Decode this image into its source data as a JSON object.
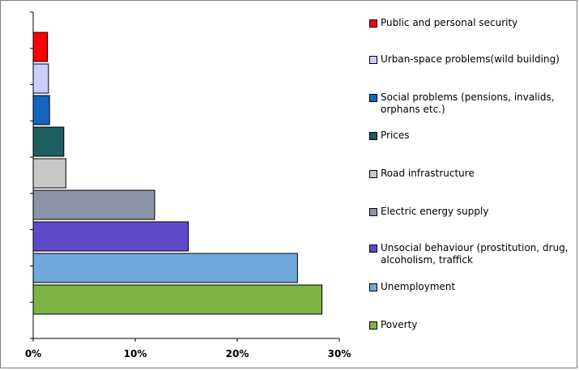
{
  "chart_data": {
    "type": "bar",
    "orientation": "horizontal",
    "categories": [
      "Poverty",
      "Unemployment",
      "Unsocial behaviour (prostitution, drug, alcoholism, traffick",
      "Electric energy supply",
      "Road infrastructure",
      "Prices",
      "Social problems (pensions, invalids, orphans etc.)",
      "Urban-space problems(wild building)",
      "Public and personal security"
    ],
    "values": [
      0.283,
      0.259,
      0.152,
      0.119,
      0.032,
      0.03,
      0.016,
      0.015,
      0.014
    ],
    "colors": [
      "#7cb342",
      "#6fa8dc",
      "#5e4bc8",
      "#8a96a8",
      "#c8c8c8",
      "#1e5f5f",
      "#1565c0",
      "#ccccff",
      "#ff0000"
    ],
    "xlim": [
      0,
      0.3
    ],
    "x_ticks": [
      "0%",
      "10%",
      "20%",
      "30%"
    ],
    "legend_position": "right",
    "grid": false,
    "title": "",
    "xlabel": "",
    "ylabel": ""
  }
}
